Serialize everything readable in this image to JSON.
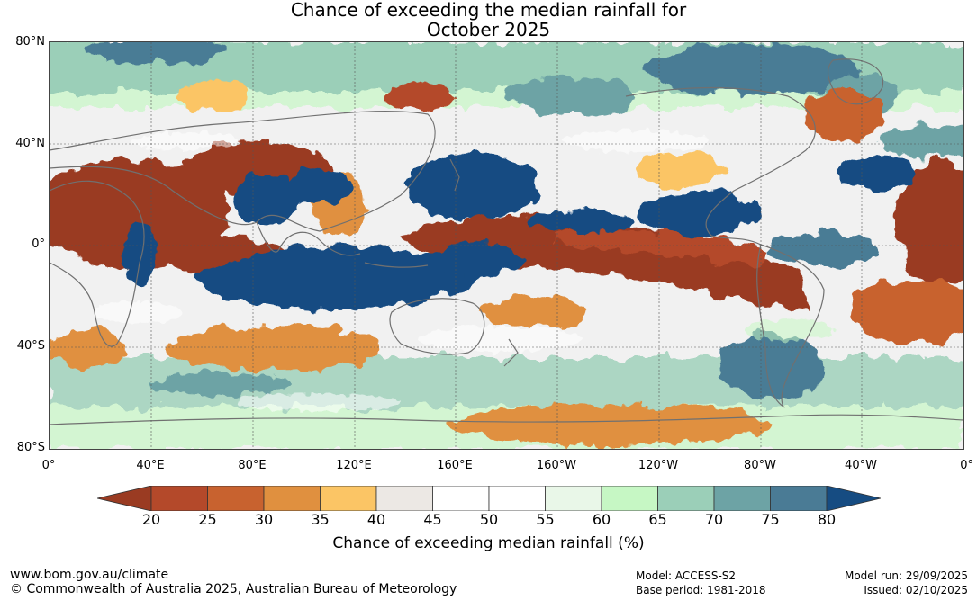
{
  "title_line1": "Chance of exceeding the median rainfall for",
  "title_line2": "October 2025",
  "lat_labels": [
    "80°N",
    "40°N",
    "0°",
    "40°S",
    "80°S"
  ],
  "lon_labels": [
    "0°",
    "40°E",
    "80°E",
    "120°E",
    "160°E",
    "160°W",
    "120°W",
    "80°W",
    "40°W",
    "0°"
  ],
  "colorbar": {
    "ticks": [
      "20",
      "25",
      "30",
      "35",
      "40",
      "45",
      "50",
      "55",
      "60",
      "65",
      "70",
      "75",
      "80"
    ],
    "colors": [
      "#9a3b22",
      "#b4492a",
      "#c8622f",
      "#e0903f",
      "#fbc565",
      "#ece8e4",
      "#ffffff",
      "#ffffff",
      "#e9f7e8",
      "#c6f7c4",
      "#9bcfb8",
      "#6da3a5",
      "#4a7b95",
      "#164c82"
    ],
    "label": "Chance of exceeding median rainfall (%)"
  },
  "footer": {
    "url": "www.bom.gov.au/climate",
    "copyright": "© Commonwealth of Australia 2025, Australian Bureau of Meteorology",
    "model": "Model: ACCESS-S2",
    "base_period": "Base period: 1981-2018",
    "model_run": "Model run: 29/09/2025",
    "issued": "Issued: 02/10/2025"
  }
}
